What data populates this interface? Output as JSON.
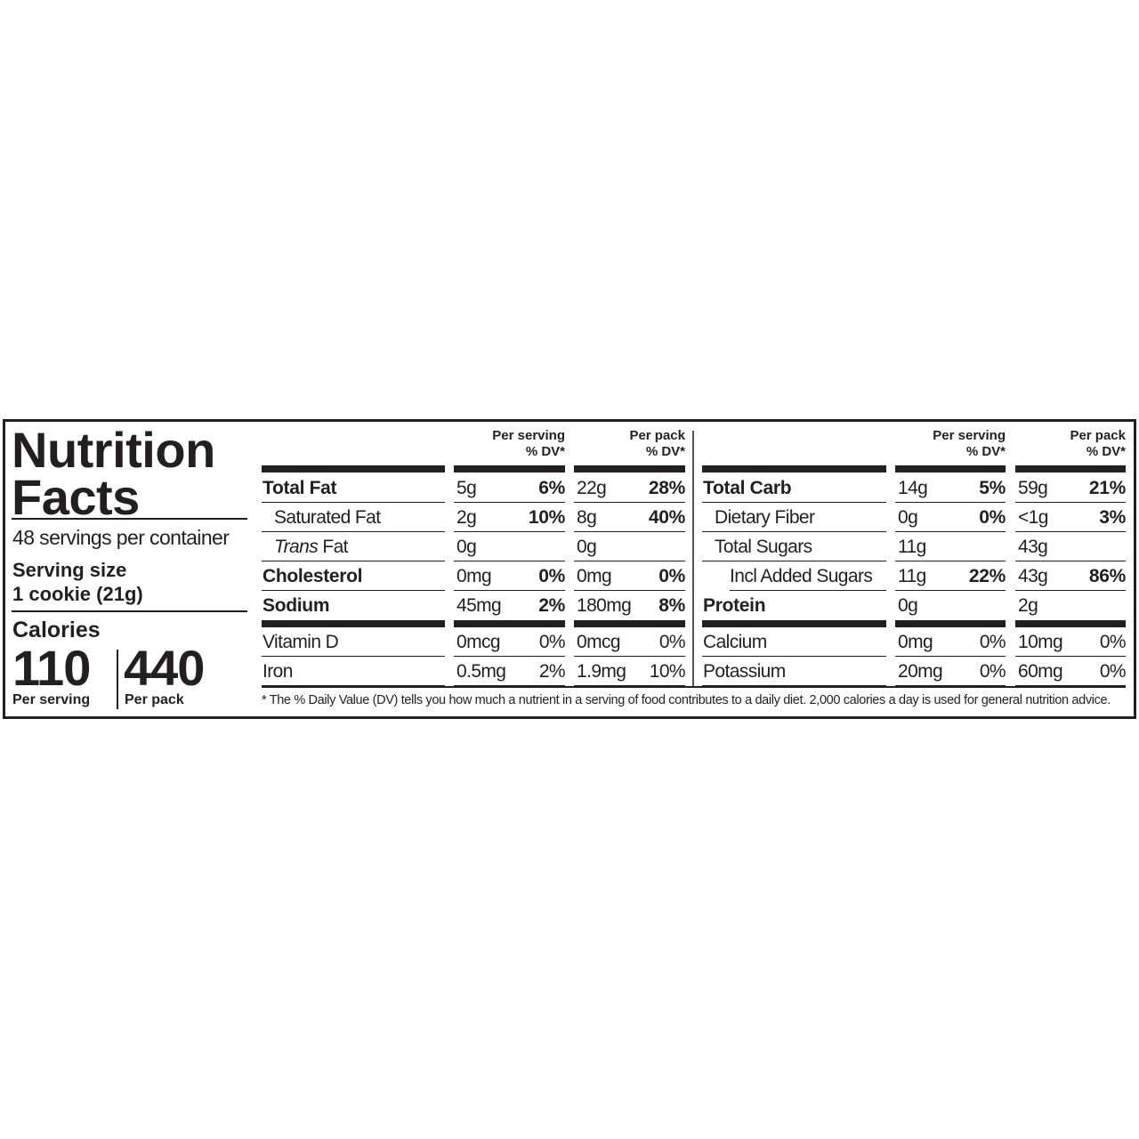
{
  "title_line1": "Nutrition",
  "title_line2": "Facts",
  "servings_per_container": "48 servings per container",
  "serving_size_label": "Serving size",
  "serving_size_value": "1 cookie (21g)",
  "calories_label": "Calories",
  "calories_per_serving": "110",
  "calories_per_pack": "440",
  "per_serving_label": "Per serving",
  "per_pack_label": "Per pack",
  "column_headers": {
    "per_serving": "Per serving",
    "per_pack": "Per pack",
    "dv": "% DV*"
  },
  "left": {
    "main_rows": [
      {
        "name": "Total Fat",
        "style": "bold",
        "serving": {
          "amount": "5g",
          "dv": "6%"
        },
        "pack": {
          "amount": "22g",
          "dv": "28%"
        }
      },
      {
        "name": "Saturated Fat",
        "style": "indent",
        "serving": {
          "amount": "2g",
          "dv": "10%"
        },
        "pack": {
          "amount": "8g",
          "dv": "40%"
        }
      },
      {
        "name_italic": "Trans",
        "name": " Fat",
        "style": "indent",
        "serving": {
          "amount": "0g",
          "dv": ""
        },
        "pack": {
          "amount": "0g",
          "dv": ""
        }
      },
      {
        "name": "Cholesterol",
        "style": "bold",
        "serving": {
          "amount": "0mg",
          "dv": "0%"
        },
        "pack": {
          "amount": "0mg",
          "dv": "0%"
        }
      },
      {
        "name": "Sodium",
        "style": "bold",
        "serving": {
          "amount": "45mg",
          "dv": "2%"
        },
        "pack": {
          "amount": "180mg",
          "dv": "8%"
        }
      }
    ],
    "minor_rows": [
      {
        "name": "Vitamin D",
        "serving": {
          "amount": "0mcg",
          "dv": "0%"
        },
        "pack": {
          "amount": "0mcg",
          "dv": "0%"
        }
      },
      {
        "name": "Iron",
        "serving": {
          "amount": "0.5mg",
          "dv": "2%"
        },
        "pack": {
          "amount": "1.9mg",
          "dv": "10%"
        }
      }
    ]
  },
  "right": {
    "main_rows": [
      {
        "name": "Total Carb",
        "style": "bold",
        "serving": {
          "amount": "14g",
          "dv": "5%"
        },
        "pack": {
          "amount": "59g",
          "dv": "21%"
        }
      },
      {
        "name": "Dietary Fiber",
        "style": "indent",
        "serving": {
          "amount": "0g",
          "dv": "0%"
        },
        "pack": {
          "amount": "<1g",
          "dv": "3%"
        }
      },
      {
        "name": "Total Sugars",
        "style": "indent",
        "serving": {
          "amount": "11g",
          "dv": ""
        },
        "pack": {
          "amount": "43g",
          "dv": ""
        }
      },
      {
        "name": "Incl Added Sugars",
        "style": "indent2",
        "serving": {
          "amount": "11g",
          "dv": "22%"
        },
        "pack": {
          "amount": "43g",
          "dv": "86%"
        }
      },
      {
        "name": "Protein",
        "style": "bold",
        "serving": {
          "amount": "0g",
          "dv": ""
        },
        "pack": {
          "amount": "2g",
          "dv": ""
        }
      }
    ],
    "minor_rows": [
      {
        "name": "Calcium",
        "serving": {
          "amount": "0mg",
          "dv": "0%"
        },
        "pack": {
          "amount": "10mg",
          "dv": "0%"
        }
      },
      {
        "name": "Potassium",
        "serving": {
          "amount": "20mg",
          "dv": "0%"
        },
        "pack": {
          "amount": "60mg",
          "dv": "0%"
        }
      }
    ]
  },
  "footnote": "* The % Daily Value (DV) tells you how much a nutrient in a serving of food contributes to a daily diet. 2,000 calories a day is used for general nutrition advice."
}
